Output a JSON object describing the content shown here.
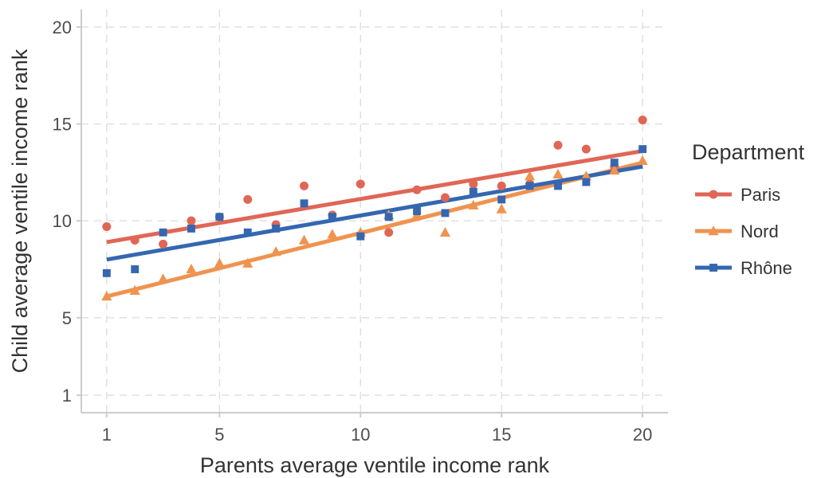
{
  "chart_data": {
    "type": "scatter",
    "xlabel": "Parents average ventile income rank",
    "ylabel": "Child average ventile income rank",
    "x_ticks": [
      1,
      5,
      10,
      15,
      20
    ],
    "y_ticks": [
      1,
      5,
      10,
      15,
      20
    ],
    "xlim": [
      0.1,
      20.9
    ],
    "ylim": [
      0.1,
      20.9
    ],
    "grid": true,
    "grid_style": "dashed",
    "legend_title": "Department",
    "legend_position": "right",
    "x": [
      1,
      2,
      3,
      4,
      5,
      6,
      7,
      8,
      9,
      10,
      11,
      12,
      13,
      14,
      15,
      16,
      17,
      18,
      19,
      20
    ],
    "series": [
      {
        "name": "Paris",
        "color": "#e06656",
        "marker": "circle",
        "x": [
          1,
          2,
          3,
          4,
          5,
          6,
          7,
          8,
          9,
          10,
          11,
          12,
          13,
          14,
          15,
          16,
          17,
          18,
          19,
          20
        ],
        "values": [
          9.7,
          9.0,
          8.8,
          10.0,
          10.2,
          11.1,
          9.8,
          11.8,
          10.3,
          11.9,
          9.4,
          11.6,
          11.2,
          11.9,
          11.8,
          11.9,
          13.9,
          13.7,
          12.8,
          15.2
        ],
        "trend": [
          8.9,
          13.6
        ]
      },
      {
        "name": "Nord",
        "color": "#ef9350",
        "marker": "triangle",
        "x": [
          1,
          2,
          3,
          4,
          5,
          6,
          7,
          8,
          9,
          10,
          11,
          12,
          13,
          14,
          15,
          16,
          17,
          18,
          19,
          20
        ],
        "values": [
          6.1,
          6.4,
          7.0,
          7.5,
          7.8,
          7.8,
          8.4,
          9.0,
          9.3,
          9.4,
          10.3,
          10.3,
          9.4,
          10.8,
          10.6,
          12.3,
          12.4,
          12.3,
          12.6,
          13.1
        ],
        "trend": [
          6.1,
          13.0
        ]
      },
      {
        "name": "Rhône",
        "color": "#3467b0",
        "marker": "square",
        "x": [
          1,
          2,
          3,
          4,
          5,
          6,
          7,
          8,
          9,
          10,
          11,
          12,
          13,
          14,
          15,
          16,
          17,
          18,
          19,
          20
        ],
        "values": [
          7.3,
          7.5,
          9.4,
          9.6,
          10.2,
          9.4,
          9.6,
          10.9,
          10.2,
          9.2,
          10.2,
          10.5,
          10.4,
          11.5,
          11.1,
          11.8,
          11.8,
          12.0,
          13.0,
          13.7
        ],
        "trend": [
          8.0,
          12.8
        ]
      }
    ]
  }
}
